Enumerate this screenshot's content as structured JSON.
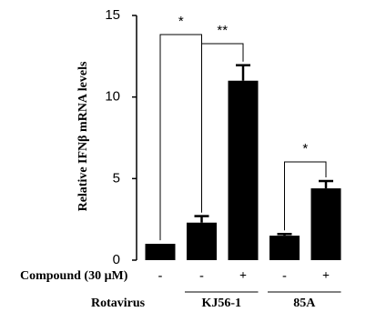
{
  "chart_data": {
    "type": "bar",
    "y_label": "Relative IFNβ mRNA levels",
    "values": [
      1.0,
      2.3,
      11.0,
      1.5,
      4.4
    ],
    "errors": [
      0,
      0.4,
      0.95,
      0.1,
      0.45
    ],
    "color": "#000000",
    "ylim": [
      0,
      15
    ],
    "yticks": [
      0,
      5,
      10,
      15
    ],
    "significance": [
      {
        "label": "*",
        "pair": [
          0,
          1
        ]
      },
      {
        "label": "**",
        "pair": [
          1,
          2
        ]
      },
      {
        "label": "*",
        "pair": [
          3,
          4
        ]
      }
    ],
    "compound": {
      "label": "Compound (30 μM)",
      "values": [
        "-",
        "-",
        "+",
        "-",
        "+"
      ]
    },
    "rotavirus": {
      "label": "Rotavirus",
      "groups": [
        {
          "name": "KJ56-1",
          "bars": [
            1,
            2
          ]
        },
        {
          "name": "85A",
          "bars": [
            3,
            4
          ]
        }
      ]
    }
  }
}
